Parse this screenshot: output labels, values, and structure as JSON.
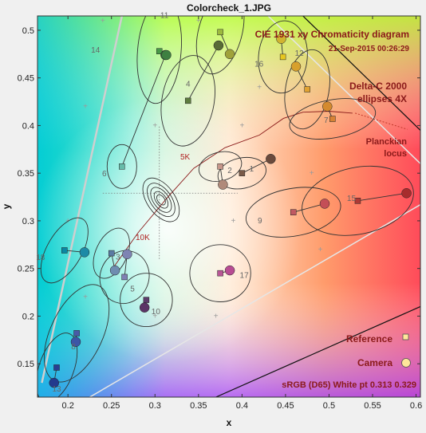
{
  "chart_data": {
    "type": "scatter",
    "title": "Colorcheck_1.JPG",
    "xlabel": "x",
    "ylabel": "y",
    "xlim": [
      0.165,
      0.605
    ],
    "ylim": [
      0.115,
      0.515
    ],
    "xticks": [
      0.2,
      0.25,
      0.3,
      0.35,
      0.4,
      0.45,
      0.5,
      0.55,
      0.6
    ],
    "xtick_labels": [
      "0.2",
      "0.25",
      "0.3",
      "0.35",
      "0.4",
      "0.45",
      "0.5",
      "0.55",
      "0.6"
    ],
    "yticks": [
      0.15,
      0.2,
      0.25,
      0.3,
      0.35,
      0.4,
      0.45,
      0.5
    ],
    "ytick_labels": [
      "0.15",
      "0.2",
      "0.25",
      "0.3",
      "0.35",
      "0.4",
      "0.45",
      "0.5"
    ],
    "annotations": {
      "diagram_title": "CIE 1931 xy Chromaticity diagram",
      "date": "21-Sep-2015 00:26:29",
      "delta_line1": "Delta-C 2000",
      "delta_line2": "ellipses 4X",
      "planck_line1": "Planckian",
      "planck_line2": "locus",
      "temp_5k": "5K",
      "temp_10k": "10K",
      "legend_reference": "Reference",
      "legend_camera": "Camera",
      "white_point": "sRGB (D65)  White pt  0.313  0.329"
    },
    "legend_position": "bottom-right",
    "grid": false,
    "planckian_locus": [
      [
        0.253,
        0.252
      ],
      [
        0.281,
        0.288
      ],
      [
        0.3135,
        0.3236
      ],
      [
        0.3445,
        0.3551
      ],
      [
        0.3805,
        0.3768
      ],
      [
        0.42,
        0.39
      ],
      [
        0.4476,
        0.4075
      ],
      [
        0.47,
        0.414
      ],
      [
        0.5,
        0.415
      ],
      [
        0.527,
        0.413
      ]
    ],
    "series": [
      {
        "name": "Reference",
        "marker": "square",
        "points": [
          {
            "patch": "1",
            "x": 0.4,
            "y": 0.35,
            "color": "#7a5a48"
          },
          {
            "patch": "2",
            "x": 0.375,
            "y": 0.357,
            "color": "#c6968a"
          },
          {
            "patch": "3",
            "x": 0.25,
            "y": 0.266,
            "color": "#5b7ba3"
          },
          {
            "patch": "4",
            "x": 0.338,
            "y": 0.426,
            "color": "#5e7c3f"
          },
          {
            "patch": "5",
            "x": 0.265,
            "y": 0.241,
            "color": "#8080b3"
          },
          {
            "patch": "6",
            "x": 0.262,
            "y": 0.357,
            "color": "#66bba9"
          },
          {
            "patch": "7",
            "x": 0.504,
            "y": 0.407,
            "color": "#d78234"
          },
          {
            "patch": "8",
            "x": 0.21,
            "y": 0.182,
            "color": "#4a5aa6"
          },
          {
            "patch": "9",
            "x": 0.459,
            "y": 0.309,
            "color": "#c05962"
          },
          {
            "patch": "10",
            "x": 0.29,
            "y": 0.217,
            "color": "#5e3d6c"
          },
          {
            "patch": "11",
            "x": 0.375,
            "y": 0.498,
            "color": "#9dba3e"
          },
          {
            "patch": "12",
            "x": 0.475,
            "y": 0.438,
            "color": "#e0a232"
          },
          {
            "patch": "13",
            "x": 0.187,
            "y": 0.146,
            "color": "#2a3e92"
          },
          {
            "patch": "14",
            "x": 0.305,
            "y": 0.478,
            "color": "#489a48"
          },
          {
            "patch": "15",
            "x": 0.533,
            "y": 0.321,
            "color": "#af3935"
          },
          {
            "patch": "16",
            "x": 0.447,
            "y": 0.472,
            "color": "#e7c71f"
          },
          {
            "patch": "17",
            "x": 0.375,
            "y": 0.245,
            "color": "#b95796"
          },
          {
            "patch": "18",
            "x": 0.196,
            "y": 0.269,
            "color": "#0b87a3"
          }
        ]
      },
      {
        "name": "Camera",
        "marker": "circle",
        "points": [
          {
            "patch": "1",
            "x": 0.433,
            "y": 0.365,
            "color": "#6b4a3c"
          },
          {
            "patch": "2",
            "x": 0.378,
            "y": 0.338,
            "color": "#b08a7a"
          },
          {
            "patch": "3",
            "x": 0.254,
            "y": 0.248,
            "color": "#6f8db0"
          },
          {
            "patch": "4",
            "x": 0.373,
            "y": 0.484,
            "color": "#586a36"
          },
          {
            "patch": "5",
            "x": 0.268,
            "y": 0.265,
            "color": "#7e84b3"
          },
          {
            "patch": "6",
            "x": 0.312,
            "y": 0.474,
            "color": "#3d7a43"
          },
          {
            "patch": "7",
            "x": 0.498,
            "y": 0.42,
            "color": "#d48a2e"
          },
          {
            "patch": "8",
            "x": 0.209,
            "y": 0.173,
            "color": "#3c55a6"
          },
          {
            "patch": "9",
            "x": 0.495,
            "y": 0.318,
            "color": "#c44f57"
          },
          {
            "patch": "10",
            "x": 0.288,
            "y": 0.209,
            "color": "#5b3566"
          },
          {
            "patch": "11",
            "x": 0.386,
            "y": 0.475,
            "color": "#a0a23a"
          },
          {
            "patch": "12",
            "x": 0.462,
            "y": 0.462,
            "color": "#d7a02d"
          },
          {
            "patch": "13",
            "x": 0.184,
            "y": 0.13,
            "color": "#233a8e"
          },
          {
            "patch": "14",
            "x": 0.313,
            "y": 0.474,
            "color": "#3e8041"
          },
          {
            "patch": "15",
            "x": 0.589,
            "y": 0.329,
            "color": "#a82c2d"
          },
          {
            "patch": "16",
            "x": 0.445,
            "y": 0.491,
            "color": "#d1b430"
          },
          {
            "patch": "17",
            "x": 0.386,
            "y": 0.248,
            "color": "#b84c93"
          },
          {
            "patch": "18",
            "x": 0.219,
            "y": 0.267,
            "color": "#1d8aa6"
          }
        ]
      }
    ]
  }
}
